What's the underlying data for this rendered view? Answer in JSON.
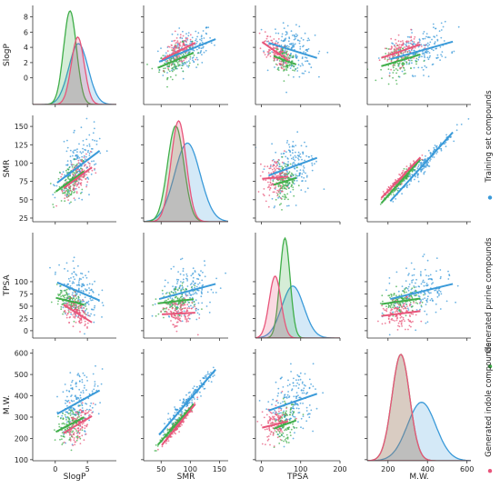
{
  "chart_data": {
    "type": "pairplot",
    "variables": [
      "SlogP",
      "SMR",
      "TPSA",
      "M.W."
    ],
    "ranges": {
      "SlogP": [
        -3.5,
        9.5
      ],
      "SMR": [
        20,
        165
      ],
      "TPSA": [
        -15,
        200
      ],
      "M.W.": [
        95,
        620
      ]
    },
    "ticks": {
      "SlogP": [
        0,
        2,
        4,
        6,
        8
      ],
      "SMR": [
        25,
        50,
        75,
        100,
        125,
        150
      ],
      "TPSA": [
        0,
        25,
        50,
        75,
        100
      ],
      "M.W.": [
        100,
        200,
        300,
        400,
        500,
        600
      ]
    },
    "xticks": {
      "SlogP": [
        0,
        5
      ],
      "SMR": [
        50,
        100,
        150
      ],
      "TPSA": [
        0,
        100,
        200
      ],
      "M.W.": [
        200,
        400,
        600
      ]
    },
    "ylabels": {
      "SlogP": "SlogP",
      "SMR": "SMR",
      "TPSA": "TPSA",
      "M.W.": "M.W."
    },
    "series": [
      {
        "name": "Training set compounds",
        "color": "#3a9ad9",
        "means": {
          "SlogP": 3.6,
          "SMR": 95,
          "TPSA": 80,
          "M.W.": 370
        },
        "sds": {
          "SlogP": 1.5,
          "SMR": 22,
          "TPSA": 28,
          "M.W.": 72
        }
      },
      {
        "name": "Generated purine compounds",
        "color": "#3fae49",
        "means": {
          "SlogP": 2.3,
          "SMR": 75,
          "TPSA": 60,
          "M.W.": 265
        },
        "sds": {
          "SlogP": 1.0,
          "SMR": 14,
          "TPSA": 13,
          "M.W.": 45
        }
      },
      {
        "name": "Generated indole compounds",
        "color": "#e8557a",
        "means": {
          "SlogP": 3.5,
          "SMR": 80,
          "TPSA": 35,
          "M.W.": 265
        },
        "sds": {
          "SlogP": 1.0,
          "SMR": 13,
          "TPSA": 15,
          "M.W.": 45
        }
      }
    ],
    "correlations": {
      "SlogP|SMR": [
        0.45,
        0.45,
        0.5
      ],
      "SlogP|TPSA": [
        -0.3,
        -0.25,
        -0.55
      ],
      "SlogP|M.W.": [
        0.35,
        0.35,
        0.4
      ],
      "SMR|TPSA": [
        0.25,
        0.15,
        0.05
      ],
      "SMR|M.W.": [
        0.97,
        0.97,
        0.97
      ],
      "TPSA|M.W.": [
        0.25,
        0.2,
        0.15
      ]
    },
    "kde_peak_heights": {
      "SlogP": [
        0.65,
        1.0,
        0.72
      ],
      "SMR": [
        0.78,
        0.95,
        1.0
      ],
      "TPSA": [
        0.52,
        1.0,
        0.62
      ],
      "M.W.": [
        0.55,
        1.0,
        1.0
      ]
    },
    "legend": [
      "Training set compounds",
      "Generated purine compounds",
      "Generated indole compounds"
    ],
    "legend_position": "right, vertical"
  }
}
